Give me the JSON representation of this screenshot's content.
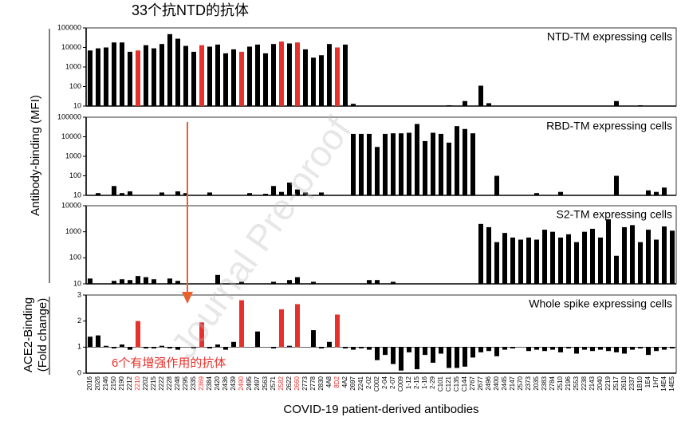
{
  "title": "33个抗NTD的抗体",
  "ylabel": "Antibody-binding (MFI)",
  "ylabel2": [
    "ACE2-Binding",
    "(Fold change)"
  ],
  "xlabel": "COVID-19 patient-derived antibodies",
  "note": "6个有增强作用的抗体",
  "watermark": "Journal Pre-proof",
  "chart_data": [
    {
      "type": "bar",
      "title": "NTD-TM expressing cells",
      "log": true,
      "ylim": [
        10,
        100000
      ],
      "yticks": [
        10,
        100,
        1000,
        10000,
        100000
      ],
      "values": [
        7000,
        9000,
        10000,
        18000,
        18000,
        6000,
        7000,
        13000,
        9000,
        15000,
        48000,
        28000,
        12000,
        6000,
        13000,
        11000,
        14000,
        5000,
        8000,
        6000,
        11000,
        14000,
        5000,
        15000,
        20000,
        16000,
        18000,
        8000,
        3000,
        4000,
        15000,
        10000,
        14000,
        13,
        10,
        10,
        10,
        10,
        10,
        10,
        10,
        10,
        10,
        10,
        10,
        11,
        10,
        18,
        10,
        110,
        14,
        10,
        10,
        10,
        10,
        10,
        10,
        10,
        10,
        10,
        10,
        10,
        10,
        10,
        10,
        10,
        18,
        10,
        10,
        11,
        10,
        10,
        10,
        10
      ],
      "colors": [
        "#000",
        "#000",
        "#000",
        "#000",
        "#000",
        "#000",
        "#e8302a",
        "#000",
        "#000",
        "#000",
        "#000",
        "#000",
        "#000",
        "#000",
        "#e8302a",
        "#000",
        "#000",
        "#000",
        "#000",
        "#e8302a",
        "#000",
        "#000",
        "#000",
        "#000",
        "#e8302a",
        "#000",
        "#e8302a",
        "#000",
        "#000",
        "#000",
        "#000",
        "#e8302a",
        "#000",
        "#000",
        "#000",
        "#000",
        "#000",
        "#000",
        "#000",
        "#000",
        "#000",
        "#000",
        "#000",
        "#000",
        "#000",
        "#000",
        "#000",
        "#000",
        "#000",
        "#000",
        "#000",
        "#000",
        "#000",
        "#000",
        "#000",
        "#000",
        "#000",
        "#000",
        "#000",
        "#000",
        "#000",
        "#000",
        "#000",
        "#000",
        "#000",
        "#000",
        "#000",
        "#000",
        "#000",
        "#000",
        "#000",
        "#000",
        "#000",
        "#000"
      ]
    },
    {
      "type": "bar",
      "title": "RBD-TM expressing cells",
      "log": true,
      "ylim": [
        10,
        100000
      ],
      "yticks": [
        10,
        100,
        1000,
        10000,
        100000
      ],
      "color": "#000",
      "values": [
        10,
        13,
        10,
        30,
        13,
        16,
        10,
        10,
        10,
        14,
        10,
        16,
        13,
        10,
        10,
        14,
        10,
        10,
        10,
        10,
        13,
        10,
        12,
        30,
        15,
        45,
        20,
        14,
        10,
        14,
        10,
        10,
        10,
        14000,
        14000,
        14000,
        3000,
        14000,
        15000,
        15000,
        16000,
        45000,
        6000,
        16000,
        14000,
        5000,
        35000,
        25000,
        15000,
        10,
        10,
        100,
        10,
        10,
        10,
        10,
        13,
        10,
        10,
        15,
        10,
        10,
        10,
        10,
        10,
        10,
        100,
        10,
        10,
        10,
        18,
        15,
        25,
        10
      ]
    },
    {
      "type": "bar",
      "title": "S2-TM expressing cells",
      "log": true,
      "ylim": [
        10,
        10000
      ],
      "yticks": [
        10,
        100,
        1000,
        10000
      ],
      "color": "#000",
      "values": [
        16,
        10,
        10,
        13,
        15,
        14,
        20,
        18,
        15,
        10,
        16,
        13,
        10,
        10,
        10,
        10,
        22,
        10,
        10,
        12,
        10,
        10,
        10,
        12,
        10,
        14,
        18,
        10,
        12,
        10,
        10,
        10,
        10,
        10,
        10,
        14,
        14,
        10,
        12,
        10,
        10,
        10,
        10,
        10,
        10,
        10,
        10,
        10,
        10,
        2000,
        1500,
        400,
        900,
        600,
        500,
        600,
        500,
        1200,
        1000,
        600,
        800,
        400,
        1000,
        1300,
        600,
        3000,
        120,
        1500,
        1800,
        400,
        1200,
        500,
        1600,
        1100
      ]
    },
    {
      "type": "bar",
      "title": "Whole spike expressing cells",
      "log": false,
      "ylim": [
        0,
        3
      ],
      "yticks": [
        0,
        1,
        2,
        3
      ],
      "baseline": 1,
      "values": [
        1.4,
        1.45,
        1.05,
        0.95,
        1.1,
        0.9,
        2.0,
        0.95,
        0.95,
        1.05,
        0.95,
        0.9,
        1.0,
        0.95,
        1.95,
        0.95,
        1.1,
        0.9,
        1.2,
        2.8,
        1.0,
        1.6,
        1.0,
        0.95,
        2.45,
        1.05,
        2.65,
        1.0,
        1.65,
        0.95,
        1.2,
        2.25,
        0.95,
        0.9,
        0.95,
        0.9,
        0.5,
        0.7,
        0.35,
        0.1,
        0.8,
        0.15,
        0.7,
        0.4,
        0.75,
        0.2,
        0.2,
        0.25,
        0.6,
        0.8,
        0.85,
        0.65,
        0.9,
        0.95,
        1.0,
        0.85,
        0.9,
        0.85,
        0.9,
        0.8,
        0.95,
        0.75,
        0.9,
        0.85,
        0.9,
        0.85,
        0.8,
        0.75,
        0.9,
        0.95,
        0.7,
        0.85,
        0.9,
        0.95
      ],
      "colors": [
        "#000",
        "#000",
        "#000",
        "#000",
        "#000",
        "#000",
        "#e8302a",
        "#000",
        "#000",
        "#000",
        "#000",
        "#000",
        "#000",
        "#000",
        "#e8302a",
        "#000",
        "#000",
        "#000",
        "#000",
        "#e8302a",
        "#000",
        "#000",
        "#000",
        "#000",
        "#e8302a",
        "#000",
        "#e8302a",
        "#000",
        "#000",
        "#000",
        "#000",
        "#e8302a",
        "#000",
        "#000",
        "#000",
        "#000",
        "#000",
        "#000",
        "#000",
        "#000",
        "#000",
        "#000",
        "#000",
        "#000",
        "#000",
        "#000",
        "#000",
        "#000",
        "#000",
        "#000",
        "#000",
        "#000",
        "#000",
        "#000",
        "#000",
        "#000",
        "#000",
        "#000",
        "#000",
        "#000",
        "#000",
        "#000",
        "#000",
        "#000",
        "#000",
        "#000",
        "#000",
        "#000",
        "#000",
        "#000",
        "#000",
        "#000",
        "#000",
        "#000"
      ],
      "categories": [
        "2016",
        "2026",
        "2146",
        "2150",
        "2190",
        "2212",
        "2210",
        "2202",
        "2215",
        "2222",
        "2228",
        "2248",
        "2295",
        "2335",
        "2369",
        "2384",
        "2420",
        "2436",
        "2439",
        "2490",
        "2495",
        "2497",
        "2563",
        "2571",
        "2582",
        "2622",
        "2660",
        "2773",
        "2778",
        "2830",
        "4A8",
        "8D2",
        "4A2",
        "2697",
        "2241",
        "2-02",
        "C002",
        "2-04",
        "2-07",
        "C009",
        "1-12",
        "2-15",
        "1-16",
        "2-29",
        "C101",
        "C121",
        "C135",
        "C144",
        "2767",
        "2677",
        "2496",
        "2400",
        "2445",
        "2147",
        "2570",
        "2373",
        "2035",
        "2383",
        "2784",
        "2510",
        "2196",
        "2553",
        "2238",
        "2143",
        "2040",
        "2219",
        "2517",
        "2610",
        "2337",
        "1B10",
        "1E4",
        "1H7",
        "14E4",
        "14E5"
      ]
    }
  ]
}
